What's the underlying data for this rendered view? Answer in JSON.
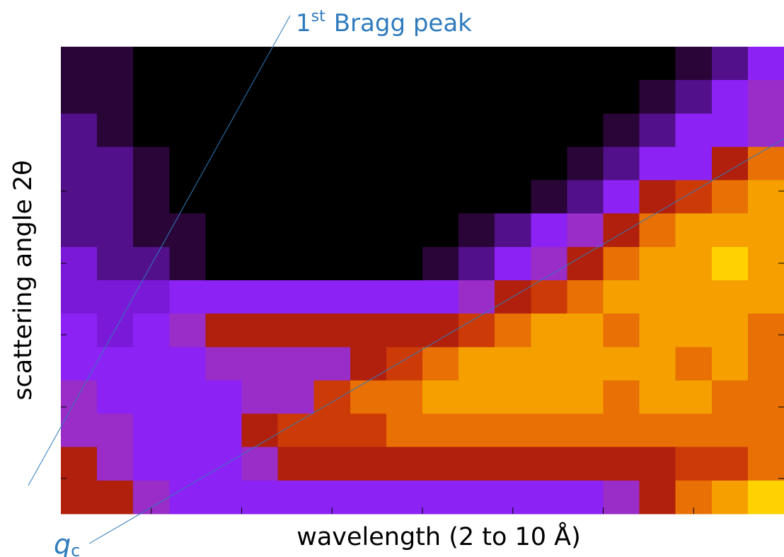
{
  "chart_data": {
    "type": "heatmap",
    "xlabel": "wavelength (2 to 10 Å)",
    "ylabel": "scattering angle 2θ",
    "annotations": {
      "bragg": {
        "number": "1",
        "superscript": "st",
        "text": "Bragg peak",
        "color": "#2f7bbd"
      },
      "qc": {
        "symbol": "q",
        "subscript": "c",
        "color": "#2f7bbd"
      }
    },
    "xlim": [
      2,
      10
    ],
    "xticks": [
      3,
      4,
      5,
      6,
      7,
      8,
      9
    ],
    "colorscale": [
      "#000000",
      "#2a0538",
      "#52108a",
      "#7a1ad8",
      "#8c22f4",
      "#9a2cc8",
      "#b0200c",
      "#cc3a08",
      "#e87004",
      "#f5a000",
      "#ffd200"
    ],
    "z": [
      [
        1,
        1,
        0,
        0,
        0,
        0,
        0,
        0,
        0,
        0,
        0,
        0,
        0,
        0,
        0,
        0,
        0,
        1,
        2,
        4
      ],
      [
        1,
        1,
        0,
        0,
        0,
        0,
        0,
        0,
        0,
        0,
        0,
        0,
        0,
        0,
        0,
        0,
        1,
        2,
        4,
        5
      ],
      [
        2,
        1,
        0,
        0,
        0,
        0,
        0,
        0,
        0,
        0,
        0,
        0,
        0,
        0,
        0,
        1,
        2,
        4,
        4,
        5
      ],
      [
        2,
        2,
        1,
        0,
        0,
        0,
        0,
        0,
        0,
        0,
        0,
        0,
        0,
        0,
        1,
        2,
        4,
        4,
        6,
        8
      ],
      [
        2,
        2,
        1,
        0,
        0,
        0,
        0,
        0,
        0,
        0,
        0,
        0,
        0,
        1,
        2,
        4,
        6,
        7,
        8,
        9
      ],
      [
        2,
        2,
        1,
        1,
        0,
        0,
        0,
        0,
        0,
        0,
        0,
        1,
        2,
        4,
        5,
        6,
        8,
        9,
        9,
        9
      ],
      [
        3,
        2,
        2,
        1,
        0,
        0,
        0,
        0,
        0,
        0,
        1,
        2,
        4,
        5,
        6,
        8,
        9,
        9,
        10,
        9
      ],
      [
        3,
        3,
        3,
        4,
        4,
        4,
        4,
        4,
        4,
        4,
        4,
        5,
        6,
        7,
        8,
        9,
        9,
        9,
        9,
        9
      ],
      [
        4,
        3,
        4,
        5,
        6,
        6,
        6,
        6,
        6,
        6,
        6,
        7,
        8,
        9,
        9,
        8,
        9,
        9,
        9,
        8
      ],
      [
        4,
        4,
        4,
        4,
        5,
        5,
        5,
        5,
        6,
        7,
        8,
        9,
        9,
        9,
        9,
        9,
        9,
        8,
        9,
        8
      ],
      [
        5,
        4,
        4,
        4,
        4,
        5,
        5,
        7,
        8,
        8,
        9,
        9,
        9,
        9,
        9,
        8,
        9,
        9,
        8,
        8
      ],
      [
        5,
        5,
        4,
        4,
        4,
        6,
        7,
        7,
        7,
        8,
        8,
        8,
        8,
        8,
        8,
        8,
        8,
        8,
        8,
        8
      ],
      [
        6,
        5,
        4,
        4,
        4,
        5,
        6,
        6,
        6,
        6,
        6,
        6,
        6,
        6,
        6,
        6,
        6,
        7,
        7,
        8
      ],
      [
        6,
        6,
        5,
        4,
        4,
        4,
        4,
        4,
        4,
        4,
        4,
        4,
        4,
        4,
        4,
        5,
        6,
        8,
        9,
        10
      ]
    ]
  }
}
